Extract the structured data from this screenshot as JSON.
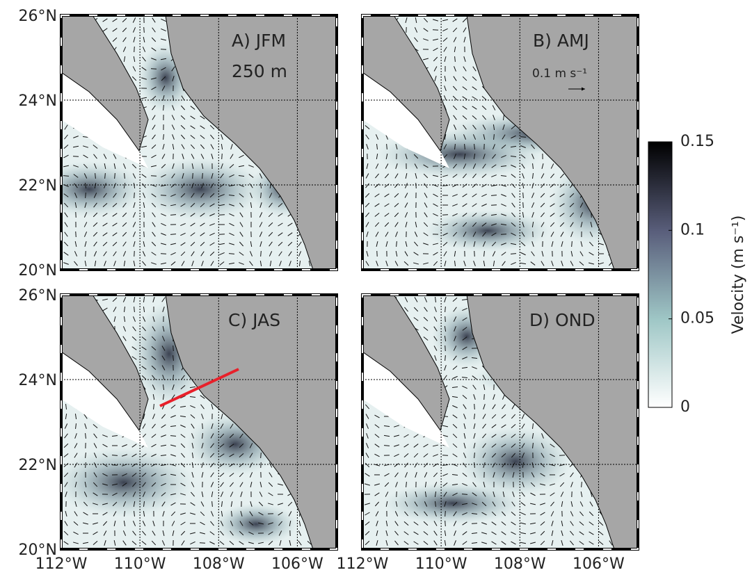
{
  "map": {
    "xlim": [
      -112,
      -105
    ],
    "ylim": [
      20,
      26
    ],
    "lon_ticks": [
      {
        "value": -112,
        "label": "112°W"
      },
      {
        "value": -110,
        "label": "110°W"
      },
      {
        "value": -108,
        "label": "108°W"
      },
      {
        "value": -106,
        "label": "106°W"
      }
    ],
    "lat_ticks": [
      {
        "value": 20,
        "label": "20°N"
      },
      {
        "value": 22,
        "label": "22°N"
      },
      {
        "value": 24,
        "label": "24°N"
      },
      {
        "value": 26,
        "label": "26°N"
      }
    ],
    "panels": [
      {
        "label": "A) JFM",
        "depth": "250 m"
      },
      {
        "label": "B) AMJ",
        "scale_arrow": "0.1 m s⁻¹"
      },
      {
        "label": "C) JAS"
      },
      {
        "label": "D) OND"
      }
    ],
    "colorbar": {
      "label": "Velocity (m s⁻¹)",
      "lim": [
        0,
        0.15
      ],
      "ticks": [
        0,
        0.05,
        0.1,
        0.15
      ]
    }
  }
}
